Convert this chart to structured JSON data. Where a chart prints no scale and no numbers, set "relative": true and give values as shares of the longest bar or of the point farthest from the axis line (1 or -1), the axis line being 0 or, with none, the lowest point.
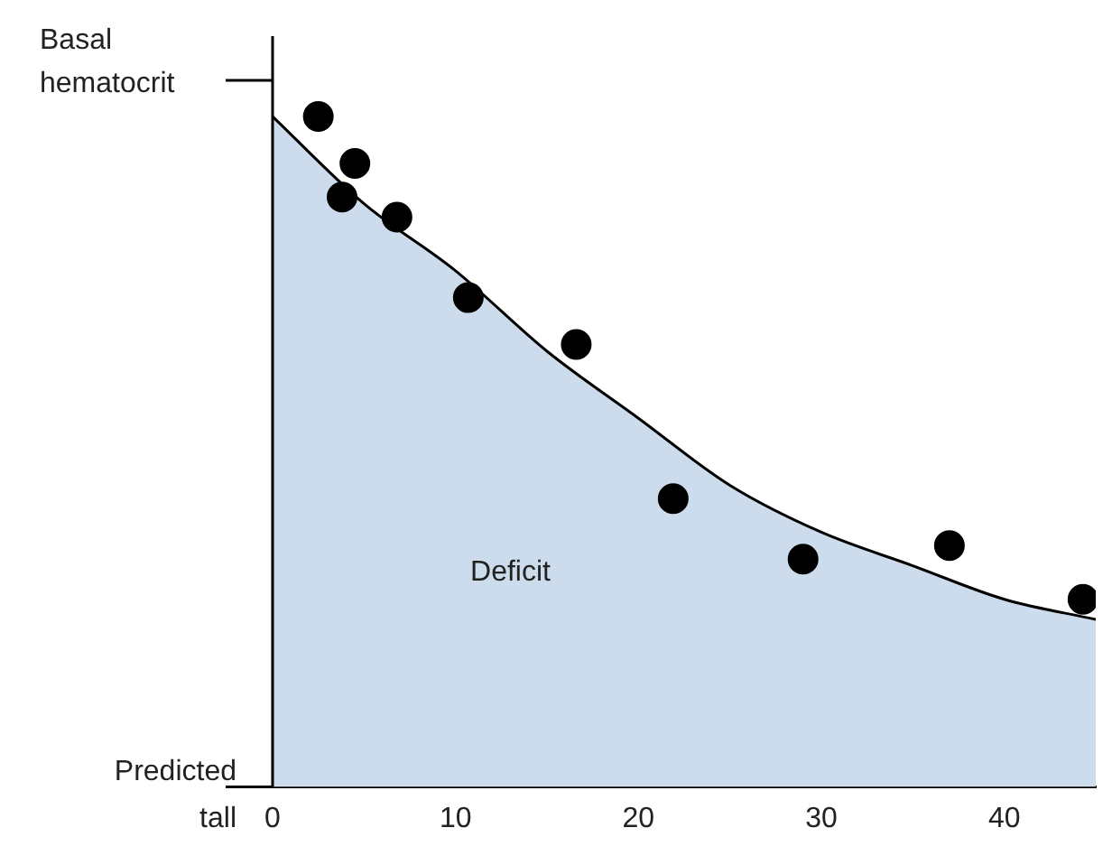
{
  "chart_data": {
    "type": "scatter",
    "relative": true,
    "xlim": [
      0,
      45
    ],
    "xticks": [
      0,
      10,
      20,
      30,
      40
    ],
    "series": [
      {
        "type": "area",
        "color": "#cddcec",
        "x": [
          0,
          5,
          10,
          15,
          20,
          25,
          30,
          35,
          40,
          45
        ],
        "values": [
          1,
          0.87,
          0.77,
          0.65,
          0.55,
          0.45,
          0.38,
          0.33,
          0.28,
          0.25
        ]
      },
      {
        "type": "scatter",
        "color": "#000000",
        "marker": "circle",
        "x": [
          2.5,
          3.8,
          4.5,
          6.8,
          10.7,
          16.6,
          21.9,
          29,
          37,
          44.3
        ],
        "values": [
          1,
          0.88,
          0.93,
          0.85,
          0.73,
          0.66,
          0.43,
          0.34,
          0.36,
          0.28
        ]
      }
    ],
    "annotations": [
      "Basal hematocrit",
      "Predicted tall",
      "Deficit"
    ]
  }
}
